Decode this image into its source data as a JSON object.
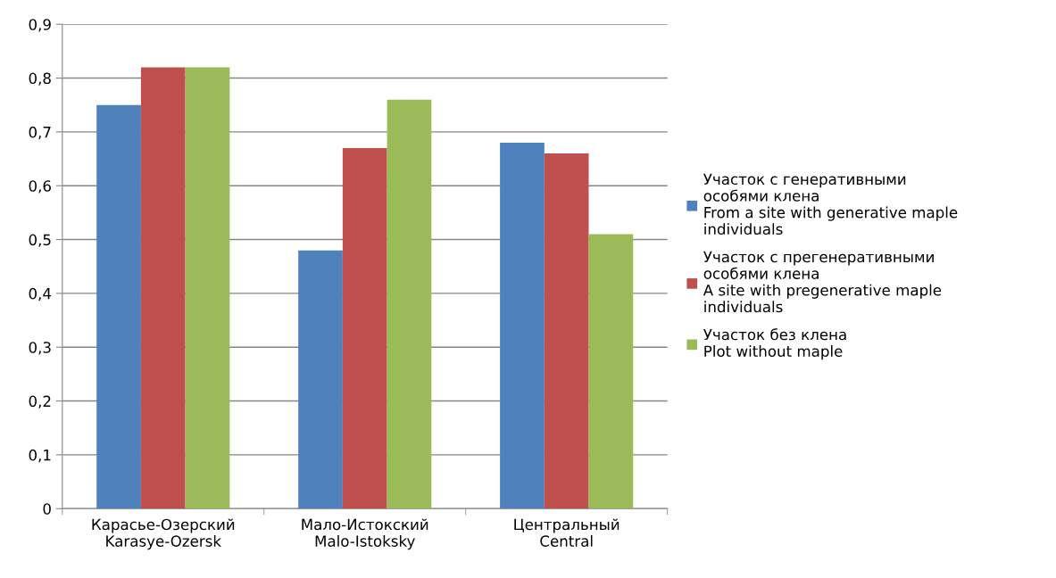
{
  "chart_data": {
    "type": "bar",
    "categories": [
      "Карасье-Озерский\nKarasye-Ozersk",
      "Мало-Истокский\nMalo-Istoksky",
      "Центральный\nCentral"
    ],
    "series": [
      {
        "name": "Участок с генеративными\nособями клена\nFrom a site with generative maple\nindividuals",
        "color": "#4f81bd",
        "values": [
          0.75,
          0.48,
          0.68
        ]
      },
      {
        "name": "Участок с прегенеративными\nособями клена\nA site with pregenerative maple\nindividuals",
        "color": "#c0504d",
        "values": [
          0.82,
          0.67,
          0.66
        ]
      },
      {
        "name": "Участок без клена\nPlot without maple",
        "color": "#9bbb59",
        "values": [
          0.82,
          0.76,
          0.51
        ]
      }
    ],
    "ylim": [
      0,
      0.9
    ],
    "yticks": [
      0,
      {
        "value": 0.1,
        "label": "0,1"
      },
      {
        "value": 0.2,
        "label": "0,2"
      },
      {
        "value": 0.3,
        "label": "0,3"
      },
      {
        "value": 0.4,
        "label": "0,4"
      },
      {
        "value": 0.5,
        "label": "0,5"
      },
      {
        "value": 0.6,
        "label": "0,6"
      },
      {
        "value": 0.7,
        "label": "0,7"
      },
      {
        "value": 0.8,
        "label": "0,8"
      },
      {
        "value": 0.9,
        "label": "0,9"
      }
    ],
    "grid": "y",
    "legend": "right"
  }
}
